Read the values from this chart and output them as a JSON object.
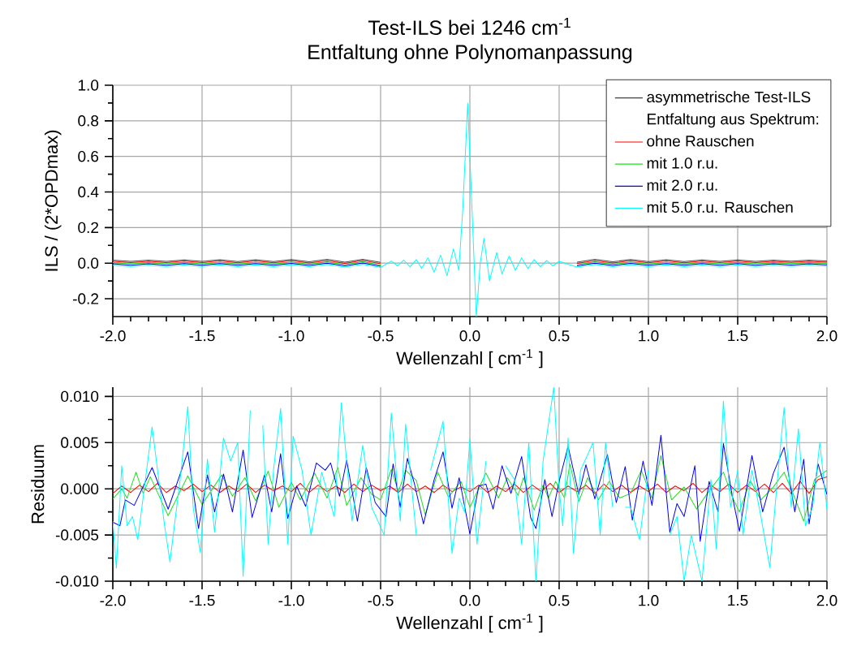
{
  "chart_data": [
    {
      "type": "line",
      "title": "Test-ILS bei 1246 cm$^{-1}$",
      "subtitle": "Entfaltung ohne Polynomanpassung",
      "xlabel": "Wellenzahl [ cm$^{-1}$ ]",
      "ylabel": "ILS / (2*OPDmax)",
      "annotations": [
        "Entfaltung aus Spektrum:"
      ],
      "xlim": [
        -2.0,
        2.0
      ],
      "ylim": [
        -0.3,
        1.0
      ],
      "xticks": [
        {
          "value": -2,
          "label": "-2.0"
        },
        {
          "value": -1.5,
          "label": "-1.5"
        },
        {
          "value": -1,
          "label": "-1.0"
        },
        {
          "value": -0.5,
          "label": "-0.5"
        },
        {
          "value": 0,
          "label": "0.0"
        },
        {
          "value": 0.5,
          "label": "0.5"
        },
        {
          "value": 1,
          "label": "1.0"
        },
        {
          "value": 1.5,
          "label": "1.5"
        },
        {
          "value": 2,
          "label": "2.0"
        }
      ],
      "yticks": [
        {
          "value": -0.2,
          "label": "-0.2"
        },
        {
          "value": 0,
          "label": "0.0"
        },
        {
          "value": 0.2,
          "label": "0.2"
        },
        {
          "value": 0.4,
          "label": "0.4"
        },
        {
          "value": 0.6,
          "label": "0.6"
        },
        {
          "value": 0.8,
          "label": "0.8"
        },
        {
          "value": 1.0,
          "label": "1.0"
        }
      ],
      "grid": true,
      "legend": "top right",
      "series": [
        {
          "name": "asymmetrische Test-ILS",
          "color": "#404040",
          "x": [
            -2.0,
            -1.9,
            -1.8,
            -1.7,
            -1.6,
            -1.5,
            -1.4,
            -1.3,
            -1.2,
            -1.1,
            -1.0,
            -0.9,
            -0.8,
            -0.7,
            -0.6,
            -0.5,
            -0.44,
            -0.405,
            -0.37,
            -0.335,
            -0.3,
            -0.27,
            -0.235,
            -0.2,
            -0.164,
            -0.128,
            -0.092,
            -0.062,
            -0.04,
            -0.012,
            0.012,
            0.036,
            0.058,
            0.079,
            0.11,
            0.15,
            0.18,
            0.22,
            0.255,
            0.29,
            0.325,
            0.36,
            0.395,
            0.43,
            0.465,
            0.5,
            0.6,
            0.7,
            0.8,
            0.9,
            1.0,
            1.1,
            1.2,
            1.3,
            1.4,
            1.5,
            1.6,
            1.7,
            1.8,
            1.9,
            2.0
          ],
          "values": [
            0.017,
            0.01,
            0.017,
            0.01,
            0.018,
            0.01,
            0.019,
            0.009,
            0.019,
            0.009,
            0.02,
            0.008,
            0.021,
            0.006,
            0.022,
            0.004,
            null,
            null,
            null,
            null,
            null,
            null,
            null,
            null,
            null,
            null,
            null,
            null,
            null,
            null,
            null,
            null,
            null,
            null,
            null,
            null,
            null,
            null,
            null,
            null,
            null,
            null,
            null,
            null,
            null,
            null,
            0.006,
            0.021,
            0.008,
            0.02,
            0.009,
            0.019,
            0.009,
            0.018,
            0.01,
            0.018,
            0.01,
            0.017,
            0.011,
            0.017,
            0.012
          ]
        },
        {
          "name": "ohne Rauschen",
          "color": "#ff0000",
          "x": [
            -2.0,
            -1.9,
            -1.8,
            -1.7,
            -1.6,
            -1.5,
            -1.4,
            -1.3,
            -1.2,
            -1.1,
            -1.0,
            -0.9,
            -0.8,
            -0.7,
            -0.6,
            -0.5,
            -0.44,
            -0.405,
            -0.37,
            -0.335,
            -0.3,
            -0.27,
            -0.235,
            -0.2,
            -0.164,
            -0.128,
            -0.092,
            -0.062,
            -0.04,
            -0.012,
            0.012,
            0.036,
            0.058,
            0.079,
            0.11,
            0.15,
            0.18,
            0.22,
            0.255,
            0.29,
            0.325,
            0.36,
            0.395,
            0.43,
            0.465,
            0.5,
            0.6,
            0.7,
            0.8,
            0.9,
            1.0,
            1.1,
            1.2,
            1.3,
            1.4,
            1.5,
            1.6,
            1.7,
            1.8,
            1.9,
            2.0
          ],
          "values": [
            0.01,
            0.003,
            0.01,
            0.003,
            0.011,
            0.003,
            0.012,
            0.002,
            0.012,
            0.002,
            0.013,
            0.001,
            0.014,
            -0.001,
            0.015,
            -0.003,
            null,
            null,
            null,
            null,
            null,
            null,
            null,
            null,
            null,
            null,
            null,
            null,
            null,
            null,
            null,
            null,
            null,
            null,
            null,
            null,
            null,
            null,
            null,
            null,
            null,
            null,
            null,
            null,
            null,
            null,
            -0.001,
            0.014,
            0.001,
            0.013,
            0.002,
            0.012,
            0.002,
            0.011,
            0.003,
            0.011,
            0.003,
            0.01,
            0.004,
            0.01,
            0.005
          ]
        },
        {
          "name": "mit 1.0 r.u.",
          "color": "#22dd22",
          "x": [
            -2.0,
            -1.9,
            -1.8,
            -1.7,
            -1.6,
            -1.5,
            -1.4,
            -1.3,
            -1.2,
            -1.1,
            -1.0,
            -0.9,
            -0.8,
            -0.7,
            -0.6,
            -0.5,
            -0.44,
            -0.405,
            -0.37,
            -0.335,
            -0.3,
            -0.27,
            -0.235,
            -0.2,
            -0.164,
            -0.128,
            -0.092,
            -0.062,
            -0.04,
            -0.012,
            0.012,
            0.036,
            0.058,
            0.079,
            0.11,
            0.15,
            0.18,
            0.22,
            0.255,
            0.29,
            0.325,
            0.36,
            0.395,
            0.43,
            0.465,
            0.5,
            0.6,
            0.7,
            0.8,
            0.9,
            1.0,
            1.1,
            1.2,
            1.3,
            1.4,
            1.5,
            1.6,
            1.7,
            1.8,
            1.9,
            2.0
          ],
          "values": [
            0.003,
            -0.004,
            0.003,
            -0.004,
            0.004,
            -0.004,
            0.005,
            -0.005,
            0.005,
            -0.005,
            0.006,
            -0.006,
            0.007,
            -0.008,
            0.008,
            -0.01,
            null,
            null,
            null,
            null,
            null,
            null,
            null,
            null,
            null,
            null,
            null,
            null,
            null,
            null,
            null,
            null,
            null,
            null,
            null,
            null,
            null,
            null,
            null,
            null,
            null,
            null,
            null,
            null,
            null,
            null,
            -0.008,
            0.007,
            -0.006,
            0.006,
            -0.005,
            0.005,
            -0.005,
            0.004,
            -0.004,
            0.004,
            -0.004,
            0.003,
            -0.003,
            0.003,
            -0.002
          ]
        },
        {
          "name": "mit 2.0 r.u.",
          "color": "#0000ff",
          "x": [
            -2.0,
            -1.9,
            -1.8,
            -1.7,
            -1.6,
            -1.5,
            -1.4,
            -1.3,
            -1.2,
            -1.1,
            -1.0,
            -0.9,
            -0.8,
            -0.7,
            -0.6,
            -0.5,
            -0.44,
            -0.405,
            -0.37,
            -0.335,
            -0.3,
            -0.27,
            -0.235,
            -0.2,
            -0.164,
            -0.128,
            -0.092,
            -0.062,
            -0.04,
            -0.012,
            0.012,
            0.036,
            0.058,
            0.079,
            0.11,
            0.15,
            0.18,
            0.22,
            0.255,
            0.29,
            0.325,
            0.36,
            0.395,
            0.43,
            0.465,
            0.5,
            0.6,
            0.7,
            0.8,
            0.9,
            1.0,
            1.1,
            1.2,
            1.3,
            1.4,
            1.5,
            1.6,
            1.7,
            1.8,
            1.9,
            2.0
          ],
          "values": [
            -0.004,
            -0.011,
            -0.004,
            -0.011,
            -0.003,
            -0.011,
            -0.002,
            -0.012,
            -0.002,
            -0.012,
            -0.001,
            -0.013,
            0.0,
            -0.015,
            0.001,
            -0.017,
            null,
            null,
            null,
            null,
            null,
            null,
            null,
            null,
            null,
            null,
            null,
            null,
            null,
            null,
            null,
            null,
            null,
            null,
            null,
            null,
            null,
            null,
            null,
            null,
            null,
            null,
            null,
            null,
            null,
            null,
            -0.015,
            0.0,
            -0.013,
            -0.001,
            -0.012,
            -0.002,
            -0.012,
            -0.003,
            -0.011,
            -0.003,
            -0.011,
            -0.004,
            -0.01,
            -0.004,
            -0.009
          ]
        },
        {
          "name": "mit 5.0 r.u. Rauschen",
          "color": "#00ffff",
          "x": [
            -2.0,
            -1.9,
            -1.8,
            -1.7,
            -1.6,
            -1.5,
            -1.4,
            -1.3,
            -1.2,
            -1.1,
            -1.0,
            -0.9,
            -0.8,
            -0.7,
            -0.6,
            -0.5,
            -0.44,
            -0.405,
            -0.37,
            -0.335,
            -0.3,
            -0.27,
            -0.235,
            -0.2,
            -0.164,
            -0.128,
            -0.092,
            -0.062,
            -0.04,
            -0.012,
            0.012,
            0.036,
            0.058,
            0.079,
            0.11,
            0.15,
            0.18,
            0.22,
            0.255,
            0.29,
            0.325,
            0.36,
            0.395,
            0.43,
            0.465,
            0.5,
            0.6,
            0.7,
            0.8,
            0.9,
            1.0,
            1.1,
            1.2,
            1.3,
            1.4,
            1.5,
            1.6,
            1.7,
            1.8,
            1.9,
            2.0
          ],
          "values": [
            -0.011,
            -0.018,
            -0.011,
            -0.018,
            -0.01,
            -0.018,
            -0.009,
            -0.019,
            -0.009,
            -0.019,
            -0.008,
            -0.02,
            -0.007,
            -0.022,
            -0.006,
            -0.024,
            0.012,
            -0.015,
            0.017,
            -0.02,
            0.02,
            -0.03,
            0.03,
            -0.05,
            0.045,
            -0.07,
            0.08,
            -0.04,
            0.3,
            0.9,
            0.3,
            -0.3,
            0,
            0.14,
            -0.1,
            0.06,
            -0.06,
            0.04,
            -0.04,
            0.03,
            -0.03,
            0.02,
            -0.02,
            0.015,
            -0.015,
            0.01,
            -0.022,
            -0.007,
            -0.02,
            -0.008,
            -0.019,
            -0.009,
            -0.019,
            -0.01,
            -0.018,
            -0.01,
            -0.018,
            -0.011,
            -0.017,
            -0.011,
            -0.016
          ]
        }
      ]
    },
    {
      "type": "line",
      "xlabel": "Wellenzahl [ cm$^{-1}$ ]",
      "ylabel": "Residuum",
      "xlim": [
        -2.0,
        2.0
      ],
      "ylim": [
        -0.01,
        0.011
      ],
      "xticks": [
        {
          "value": -2,
          "label": "-2.0"
        },
        {
          "value": -1.5,
          "label": "-1.5"
        },
        {
          "value": -1,
          "label": "-1.0"
        },
        {
          "value": -0.5,
          "label": "-0.5"
        },
        {
          "value": 0,
          "label": "0.0"
        },
        {
          "value": 0.5,
          "label": "0.5"
        },
        {
          "value": 1,
          "label": "1.0"
        },
        {
          "value": 1.5,
          "label": "1.5"
        },
        {
          "value": 2,
          "label": "2.0"
        }
      ],
      "yticks": [
        {
          "value": -0.01,
          "label": "-0.010"
        },
        {
          "value": -0.005,
          "label": "-0.005"
        },
        {
          "value": 0,
          "label": "0.000"
        },
        {
          "value": 0.005,
          "label": "0.005"
        },
        {
          "value": 0.01,
          "label": "0.010"
        }
      ],
      "grid": true,
      "series": [
        {
          "color": "#ff0000",
          "x": [
            -2.0,
            -1.95,
            -1.9,
            -1.85,
            -1.8,
            -1.75,
            -1.7,
            -1.65,
            -1.6,
            -1.55,
            -1.5,
            -1.45,
            -1.4,
            -1.35,
            -1.3,
            -1.25,
            -1.2,
            -1.15,
            -1.1,
            -1.05,
            -1.0,
            -0.95,
            -0.9,
            -0.85,
            -0.8,
            -0.75,
            -0.7,
            -0.65,
            -0.6,
            -0.55,
            -0.5,
            -0.45,
            -0.4,
            -0.35,
            -0.3,
            -0.25,
            -0.2,
            -0.15,
            -0.1,
            -0.05,
            0.0,
            0.05,
            0.1,
            0.15,
            0.2,
            0.25,
            0.3,
            0.35,
            0.4,
            0.45,
            0.5,
            0.55,
            0.6,
            0.65,
            0.7,
            0.75,
            0.8,
            0.85,
            0.9,
            0.95,
            1.0,
            1.05,
            1.1,
            1.15,
            1.2,
            1.25,
            1.3,
            1.35,
            1.4,
            1.45,
            1.5,
            1.55,
            1.6,
            1.65,
            1.7,
            1.75,
            1.8,
            1.85,
            1.9,
            1.95,
            2.0
          ],
          "values": [
            -0.0005,
            0.0003,
            -0.0004,
            0.0004,
            -0.0003,
            0.0006,
            -0.0004,
            0.0003,
            -0.0002,
            0.0005,
            -0.0003,
            0.0004,
            -0.0004,
            0.0003,
            -0.0003,
            0.0005,
            -0.0004,
            0.0004,
            -0.0002,
            0.0003,
            -0.0003,
            0.0006,
            -0.0004,
            0.0004,
            -0.0003,
            0.0003,
            -0.0004,
            0.0005,
            -0.0003,
            0.0004,
            -0.0002,
            0.0003,
            -0.0004,
            0.0005,
            -0.0003,
            0.0003,
            -0.0004,
            0.0004,
            -0.0003,
            0.0002,
            -0.0003,
            0.0004,
            -0.0004,
            0.0003,
            -0.0003,
            0.0005,
            -0.0004,
            0.0004,
            -0.0003,
            0.0006,
            -0.0004,
            0.0003,
            -0.0003,
            0.0004,
            -0.0005,
            0.0005,
            -0.0003,
            0.0004,
            -0.0004,
            0.0003,
            -0.0003,
            0.0005,
            -0.0004,
            0.0003,
            -0.0002,
            0.0006,
            -0.0004,
            0.0004,
            -0.0003,
            0.0005,
            -0.0004,
            0.0004,
            -0.0003,
            0.0005,
            -0.0004,
            0.0006,
            -0.0005,
            0.0008,
            -0.0005,
            0.001,
            0.0013
          ]
        },
        {
          "color": "#22dd22",
          "x": [
            -2.0,
            -1.95,
            -1.92,
            -1.87,
            -1.83,
            -1.79,
            -1.69,
            -1.58,
            -1.5,
            -1.39,
            -1.33,
            -1.26,
            -1.2,
            -1.13,
            -1.07,
            -1.0,
            -0.95,
            -0.87,
            -0.8,
            -0.74,
            -0.69,
            -0.61,
            -0.55,
            -0.5,
            -0.44,
            -0.4,
            -0.36,
            -0.3,
            -0.25,
            -0.18,
            -0.12,
            -0.05,
            0.0,
            0.09,
            0.16,
            0.21,
            0.27,
            0.3,
            0.36,
            0.41,
            0.44,
            0.48,
            0.53,
            0.56,
            0.61,
            0.66,
            0.72,
            0.78,
            0.84,
            0.9,
            0.96,
            1.02,
            1.07,
            1.13,
            1.2,
            1.27,
            1.33,
            1.42,
            1.47,
            1.51,
            1.57,
            1.63,
            1.7,
            1.76,
            1.82,
            1.87,
            1.93,
            2.0
          ],
          "values": [
            -0.0011,
            0.0,
            -0.001,
            0.0018,
            -0.0005,
            0.0013,
            -0.0029,
            0.0014,
            -0.0017,
            0.0015,
            -0.0008,
            0.0012,
            -0.0013,
            0.0019,
            -0.002,
            0.0007,
            -0.0012,
            0.0017,
            -0.001,
            0.0023,
            -0.0018,
            0.0012,
            -0.0006,
            -0.0012,
            0.0021,
            -0.0003,
            0.002,
            0.0009,
            -0.0028,
            0.0018,
            -0.0009,
            0.0008,
            -0.002,
            0.0017,
            -0.001,
            0.0012,
            -0.0007,
            0.0012,
            -0.0023,
            0.0004,
            -0.001,
            0.0008,
            -0.001,
            0.0027,
            -0.0014,
            0.0012,
            -0.0012,
            0.0008,
            -0.001,
            -0.0005,
            0.002,
            -0.001,
            0.0036,
            -0.0012,
            0.0002,
            -0.0022,
            -0.0005,
            0.0018,
            -0.0009,
            -0.0025,
            0.0009,
            -0.0012,
            0.0002,
            0.0018,
            -0.001,
            -0.0035,
            0.001,
            0.002
          ]
        },
        {
          "color": "#0000ff",
          "x": [
            -2.0,
            -1.96,
            -1.93,
            -1.88,
            -1.78,
            -1.69,
            -1.58,
            -1.52,
            -1.47,
            -1.43,
            -1.38,
            -1.33,
            -1.27,
            -1.22,
            -1.15,
            -1.11,
            -1.06,
            -1.02,
            -0.97,
            -0.92,
            -0.86,
            -0.81,
            -0.78,
            -0.73,
            -0.69,
            -0.63,
            -0.58,
            -0.53,
            -0.47,
            -0.43,
            -0.39,
            -0.35,
            -0.31,
            -0.26,
            -0.2,
            -0.15,
            -0.1,
            -0.06,
            0.0,
            0.05,
            0.09,
            0.13,
            0.18,
            0.23,
            0.29,
            0.34,
            0.37,
            0.42,
            0.46,
            0.5,
            0.55,
            0.61,
            0.65,
            0.7,
            0.77,
            0.82,
            0.87,
            0.91,
            0.97,
            1.02,
            1.07,
            1.12,
            1.16,
            1.2,
            1.26,
            1.29,
            1.34,
            1.39,
            1.42,
            1.47,
            1.51,
            1.58,
            1.64,
            1.7,
            1.76,
            1.82,
            1.87,
            1.9,
            1.95,
            2.0
          ],
          "values": [
            -0.0036,
            -0.004,
            -0.0012,
            -0.0018,
            0.0023,
            -0.0022,
            0.004,
            -0.0043,
            0.0015,
            -0.0025,
            0.0016,
            -0.0025,
            0.0042,
            -0.0031,
            0.0015,
            -0.0025,
            0.0038,
            -0.0032,
            0.0003,
            -0.0019,
            0.0028,
            0.002,
            0.0028,
            -0.0008,
            0.0031,
            -0.0035,
            0.0023,
            -0.0015,
            -0.003,
            0.0027,
            -0.002,
            0.0033,
            0.0005,
            -0.0038,
            0.001,
            0.004,
            -0.0021,
            0.0012,
            -0.0049,
            0.0003,
            0.0005,
            -0.0022,
            0.0025,
            -0.0005,
            0.0035,
            -0.0031,
            -0.0043,
            0.001,
            -0.003,
            0.0008,
            0.0046,
            -0.0006,
            0.0026,
            -0.0011,
            0.0037,
            -0.0015,
            0.0024,
            -0.0034,
            0.003,
            -0.0018,
            0.0058,
            -0.0047,
            -0.0016,
            -0.003,
            0.0025,
            -0.0057,
            0.0008,
            -0.0025,
            0.0049,
            -0.0008,
            -0.0046,
            0.0036,
            -0.0025,
            0.0017,
            0.0045,
            -0.0025,
            0.0032,
            -0.0038,
            0.0027,
            -0.0006
          ]
        },
        {
          "color": "#00ffff",
          "x": [
            -2.0,
            -1.98,
            -1.95,
            -1.92,
            -1.89,
            -1.86,
            -1.78,
            -1.71,
            -1.68,
            -1.62,
            -1.58,
            -1.55,
            -1.51,
            -1.47,
            -1.43,
            -1.38,
            -1.34,
            -1.3,
            -1.27,
            -1.23,
            -1.2,
            -1.16,
            -1.13,
            -1.1,
            -1.06,
            -1.02,
            -0.99,
            -0.94,
            -0.89,
            -0.83,
            -0.76,
            -0.72,
            -0.66,
            -0.6,
            -0.55,
            -0.48,
            -0.44,
            -0.39,
            -0.36,
            -0.3,
            -0.26,
            -0.22,
            -0.15,
            -0.1,
            -0.06,
            -0.03,
            0.0,
            0.04,
            0.09,
            0.14,
            0.2,
            0.25,
            0.29,
            0.33,
            0.37,
            0.41,
            0.47,
            0.5,
            0.52,
            0.55,
            0.58,
            0.62,
            0.69,
            0.73,
            0.76,
            0.8,
            0.84,
            0.87,
            0.9,
            0.95,
            1.0,
            1.05,
            1.08,
            1.12,
            1.16,
            1.2,
            1.24,
            1.3,
            1.35,
            1.38,
            1.42,
            1.46,
            1.5,
            1.53,
            1.58,
            1.63,
            1.68,
            1.72,
            1.76,
            1.8,
            1.84,
            1.88,
            1.92,
            1.96,
            2.0
          ],
          "values": [
            -0.0035,
            -0.0086,
            0.0025,
            -0.004,
            -0.003,
            -0.0055,
            0.0067,
            -0.004,
            -0.0079,
            0.0015,
            0.0089,
            -0.002,
            -0.0069,
            0.0032,
            -0.0047,
            0.0055,
            0.003,
            0.005,
            -0.0095,
            0.0085,
            null,
            0.0069,
            -0.006,
            0.002,
            0.0087,
            -0.006,
            0.0057,
            0.002,
            -0.005,
            0.0018,
            -0.003,
            0.0093,
            -0.0035,
            0.0047,
            -0.002,
            -0.005,
            0.0082,
            -0.0035,
            0.007,
            -0.005,
            null,
            0.002,
            0.0073,
            -0.007,
            -0.001,
            -0.0025,
            0.0054,
            -0.006,
            0.003,
            null,
            0.0025,
            0.001,
            -0.006,
            0.005,
            -0.01,
            0.003,
            0.011,
            0.0,
            -0.004,
            0.0055,
            -0.007,
            0.002,
            0.005,
            -0.005,
            0.005,
            -0.002,
            null,
            -0.002,
            -0.002,
            -0.0055,
            0.002,
            null,
            null,
            -0.005,
            -0.003,
            -0.01,
            -0.005,
            -0.01,
            0.001,
            -0.0065,
            0.0095,
            -0.002,
            0.002,
            -0.005,
            0.002,
            -0.003,
            -0.0085,
            0.0005,
            0.0088,
            -0.002,
            0.0065,
            -0.004,
            -0.002,
            0.005,
            -0.0022
          ]
        }
      ]
    }
  ]
}
